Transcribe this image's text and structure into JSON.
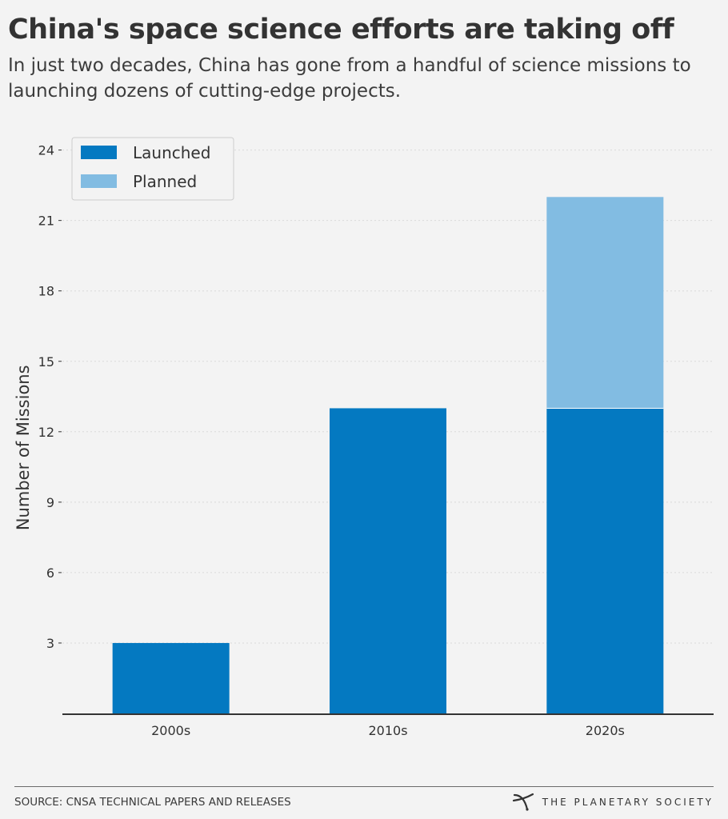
{
  "title": "China's space science efforts are taking off",
  "subtitle": "In just two decades, China has gone from a handful of science missions to launching dozens of cutting-edge projects.",
  "source": "SOURCE: CNSA TECHNICAL PAPERS AND RELEASES",
  "brand": {
    "name": "THE PLANETARY SOCIETY",
    "icon": "planetary-society-logo-icon"
  },
  "colors": {
    "launched": "#0479c1",
    "planned": "#82bce2",
    "text": "#333333",
    "axis": "#333333",
    "grid": "#d9d9d9",
    "background": "#f3f3f3"
  },
  "chart_data": {
    "type": "bar",
    "stacked": true,
    "categories": [
      "2000s",
      "2010s",
      "2020s"
    ],
    "series": [
      {
        "name": "Launched",
        "values": [
          3,
          13,
          13
        ],
        "color": "#0479c1"
      },
      {
        "name": "Planned",
        "values": [
          0,
          0,
          9
        ],
        "color": "#82bce2"
      }
    ],
    "xlabel": "",
    "ylabel": "Number of Missions",
    "ylim": [
      0,
      24.5
    ],
    "yticks": [
      3,
      6,
      9,
      12,
      15,
      18,
      21,
      24
    ],
    "grid": "horizontal dotted",
    "legend_position": "top-left"
  }
}
